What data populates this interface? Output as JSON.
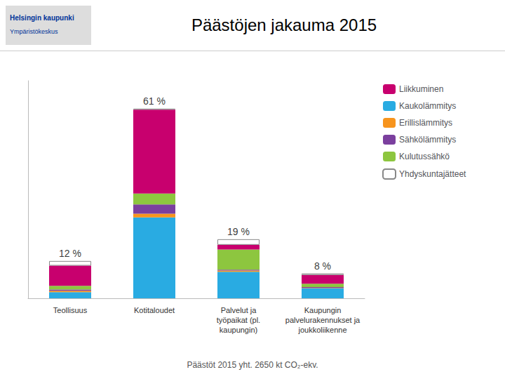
{
  "chart_data": {
    "type": "bar",
    "title": "Päästöjen jakauma 2015",
    "categories": [
      "Teollisuus",
      "Kotitaloudet",
      "Palvelut ja\ntyöpaikat (pl.\nkaupungin)",
      "Kaupungin\npalvelurakennukset ja\njoukkoliikenne"
    ],
    "series": [
      {
        "name": "Kaukolämmitys",
        "color": "#29ABE2",
        "values": [
          2.0,
          26.0,
          8.5,
          3.2
        ]
      },
      {
        "name": "Erillislämmitys",
        "color": "#F7941D",
        "values": [
          0.4,
          1.2,
          0.4,
          0.15
        ]
      },
      {
        "name": "Sähkölämmitys",
        "color": "#7B3F9E",
        "values": [
          0.4,
          3.0,
          0.3,
          0.25
        ]
      },
      {
        "name": "Kulutussähkö",
        "color": "#8DC63F",
        "values": [
          1.2,
          3.5,
          6.5,
          1.1
        ]
      },
      {
        "name": "Liikkuminen",
        "color": "#C8006E",
        "values": [
          6.5,
          27.0,
          1.5,
          2.8
        ]
      },
      {
        "name": "Yhdyskuntajätteet",
        "color": "#FFFFFF",
        "values": [
          1.5,
          0.3,
          1.8,
          0.5
        ]
      }
    ],
    "stacked": true,
    "legend": "upper right",
    "legend_order": [
      "Liikkuminen",
      "Kaukolämmitys",
      "Erillislämmitys",
      "Sähkölämmitys",
      "Kulutussähkö",
      "Yhdyskuntajätteet"
    ],
    "totals": [
      12.0,
      61.0,
      19.0,
      8.0
    ],
    "total_labels": [
      "12 %",
      "61 %",
      "19 %",
      "8 %"
    ],
    "ylim": [
      0,
      70
    ],
    "tick_labels": "x",
    "grid": false,
    "footer": "Päästöt 2015 yht. 2650 kt CO₂-ekv.",
    "logo_texts": [
      "Helsingin kaupunki",
      "Ympäristökeskus"
    ]
  }
}
